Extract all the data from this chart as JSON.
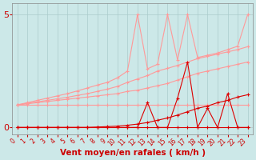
{
  "xlabel": "Vent moyen/en rafales ( km/h )",
  "bg_color": "#cce8e8",
  "grid_color": "#aacccc",
  "ylim": [
    -0.3,
    5.5
  ],
  "xlim": [
    -0.5,
    23.5
  ],
  "yticks": [
    0,
    5
  ],
  "xticks": [
    0,
    1,
    2,
    3,
    4,
    5,
    6,
    7,
    8,
    9,
    10,
    11,
    12,
    13,
    14,
    15,
    16,
    17,
    18,
    19,
    20,
    21,
    22,
    23
  ],
  "x": [
    0,
    1,
    2,
    3,
    4,
    5,
    6,
    7,
    8,
    9,
    10,
    11,
    12,
    13,
    14,
    15,
    16,
    17,
    18,
    19,
    20,
    21,
    22,
    23
  ],
  "pink_flat": [
    1.0,
    1.0,
    1.0,
    1.0,
    1.0,
    1.0,
    1.0,
    1.0,
    1.0,
    1.0,
    1.0,
    1.0,
    1.0,
    1.0,
    1.0,
    1.0,
    1.0,
    1.0,
    1.0,
    1.0,
    1.0,
    1.0,
    1.0,
    1.0
  ],
  "pink_ramp1": [
    1.0,
    1.05,
    1.1,
    1.15,
    1.2,
    1.25,
    1.3,
    1.35,
    1.4,
    1.45,
    1.5,
    1.6,
    1.65,
    1.75,
    1.85,
    1.95,
    2.1,
    2.25,
    2.4,
    2.5,
    2.6,
    2.7,
    2.8,
    2.9
  ],
  "pink_ramp2": [
    1.0,
    1.07,
    1.14,
    1.2,
    1.27,
    1.34,
    1.42,
    1.5,
    1.6,
    1.7,
    1.82,
    2.0,
    2.15,
    2.3,
    2.5,
    2.62,
    2.75,
    2.9,
    3.05,
    3.15,
    3.25,
    3.35,
    3.45,
    3.58
  ],
  "pink_spiky": [
    1.0,
    1.1,
    1.2,
    1.3,
    1.4,
    1.5,
    1.62,
    1.75,
    1.88,
    2.0,
    2.2,
    2.5,
    5.0,
    2.6,
    2.8,
    5.0,
    3.0,
    5.0,
    3.1,
    3.2,
    3.3,
    3.45,
    3.6,
    5.0
  ],
  "red_flat": [
    0.0,
    0.0,
    0.0,
    0.0,
    0.0,
    0.0,
    0.0,
    0.0,
    0.0,
    0.0,
    0.0,
    0.0,
    0.0,
    0.0,
    0.0,
    0.0,
    0.0,
    0.0,
    0.0,
    0.0,
    0.0,
    0.0,
    0.0,
    0.0
  ],
  "red_ramp": [
    0.0,
    0.0,
    0.0,
    0.0,
    0.0,
    0.0,
    0.0,
    0.0,
    0.02,
    0.04,
    0.06,
    0.1,
    0.15,
    0.22,
    0.32,
    0.42,
    0.55,
    0.7,
    0.85,
    0.95,
    1.1,
    1.2,
    1.35,
    1.45
  ],
  "red_spiky": [
    0.0,
    0.0,
    0.0,
    0.0,
    0.0,
    0.0,
    0.0,
    0.0,
    0.0,
    0.0,
    0.0,
    0.0,
    0.0,
    1.1,
    0.0,
    0.0,
    1.3,
    2.9,
    0.0,
    0.85,
    0.0,
    1.5,
    0.0,
    0.0
  ],
  "pink_color": "#ff9999",
  "red_color": "#dd0000",
  "tick_color": "#cc0000",
  "xlabel_color": "#cc0000",
  "xlabel_fontsize": 7.5,
  "ytick_fontsize": 8,
  "xtick_fontsize": 5.5
}
